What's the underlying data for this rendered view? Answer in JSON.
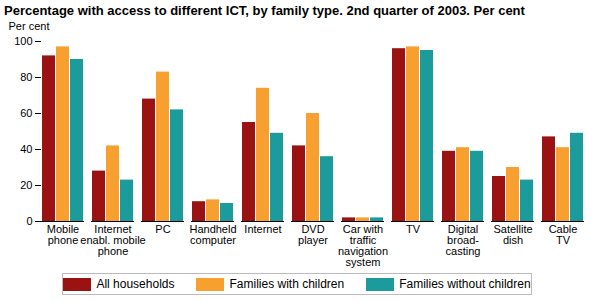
{
  "chart_data": {
    "type": "bar",
    "title": "Percentage with access to different ICT, by family type. 2nd quarter of 2003. Per cent",
    "y_label": "Per cent",
    "categories": [
      "Mobile\nphone",
      "Internet\nenabl. mobile\nphone",
      "PC",
      "Handheld\ncomputer",
      "Internet",
      "DVD\nplayer",
      "Car with\ntraffic\nnavigation\nsystem",
      "TV",
      "Digital\nbroad-\ncasting",
      "Satellite\ndish",
      "Cable\nTV"
    ],
    "series": [
      {
        "name": "All households",
        "color": "#9b1212",
        "values": [
          92,
          28,
          68,
          11,
          55,
          42,
          2,
          96,
          39,
          25,
          47
        ]
      },
      {
        "name": "Families with children",
        "color": "#f7a030",
        "values": [
          97,
          42,
          83,
          12,
          74,
          60,
          2,
          97,
          41,
          30,
          41
        ]
      },
      {
        "name": "Families without children",
        "color": "#1b9b9b",
        "values": [
          90,
          23,
          62,
          10,
          49,
          36,
          2,
          95,
          39,
          23,
          49
        ]
      }
    ],
    "ylim": [
      0,
      100
    ],
    "yticks": [
      0,
      20,
      40,
      60,
      80,
      100
    ],
    "grid": false,
    "legend": "bottom"
  }
}
